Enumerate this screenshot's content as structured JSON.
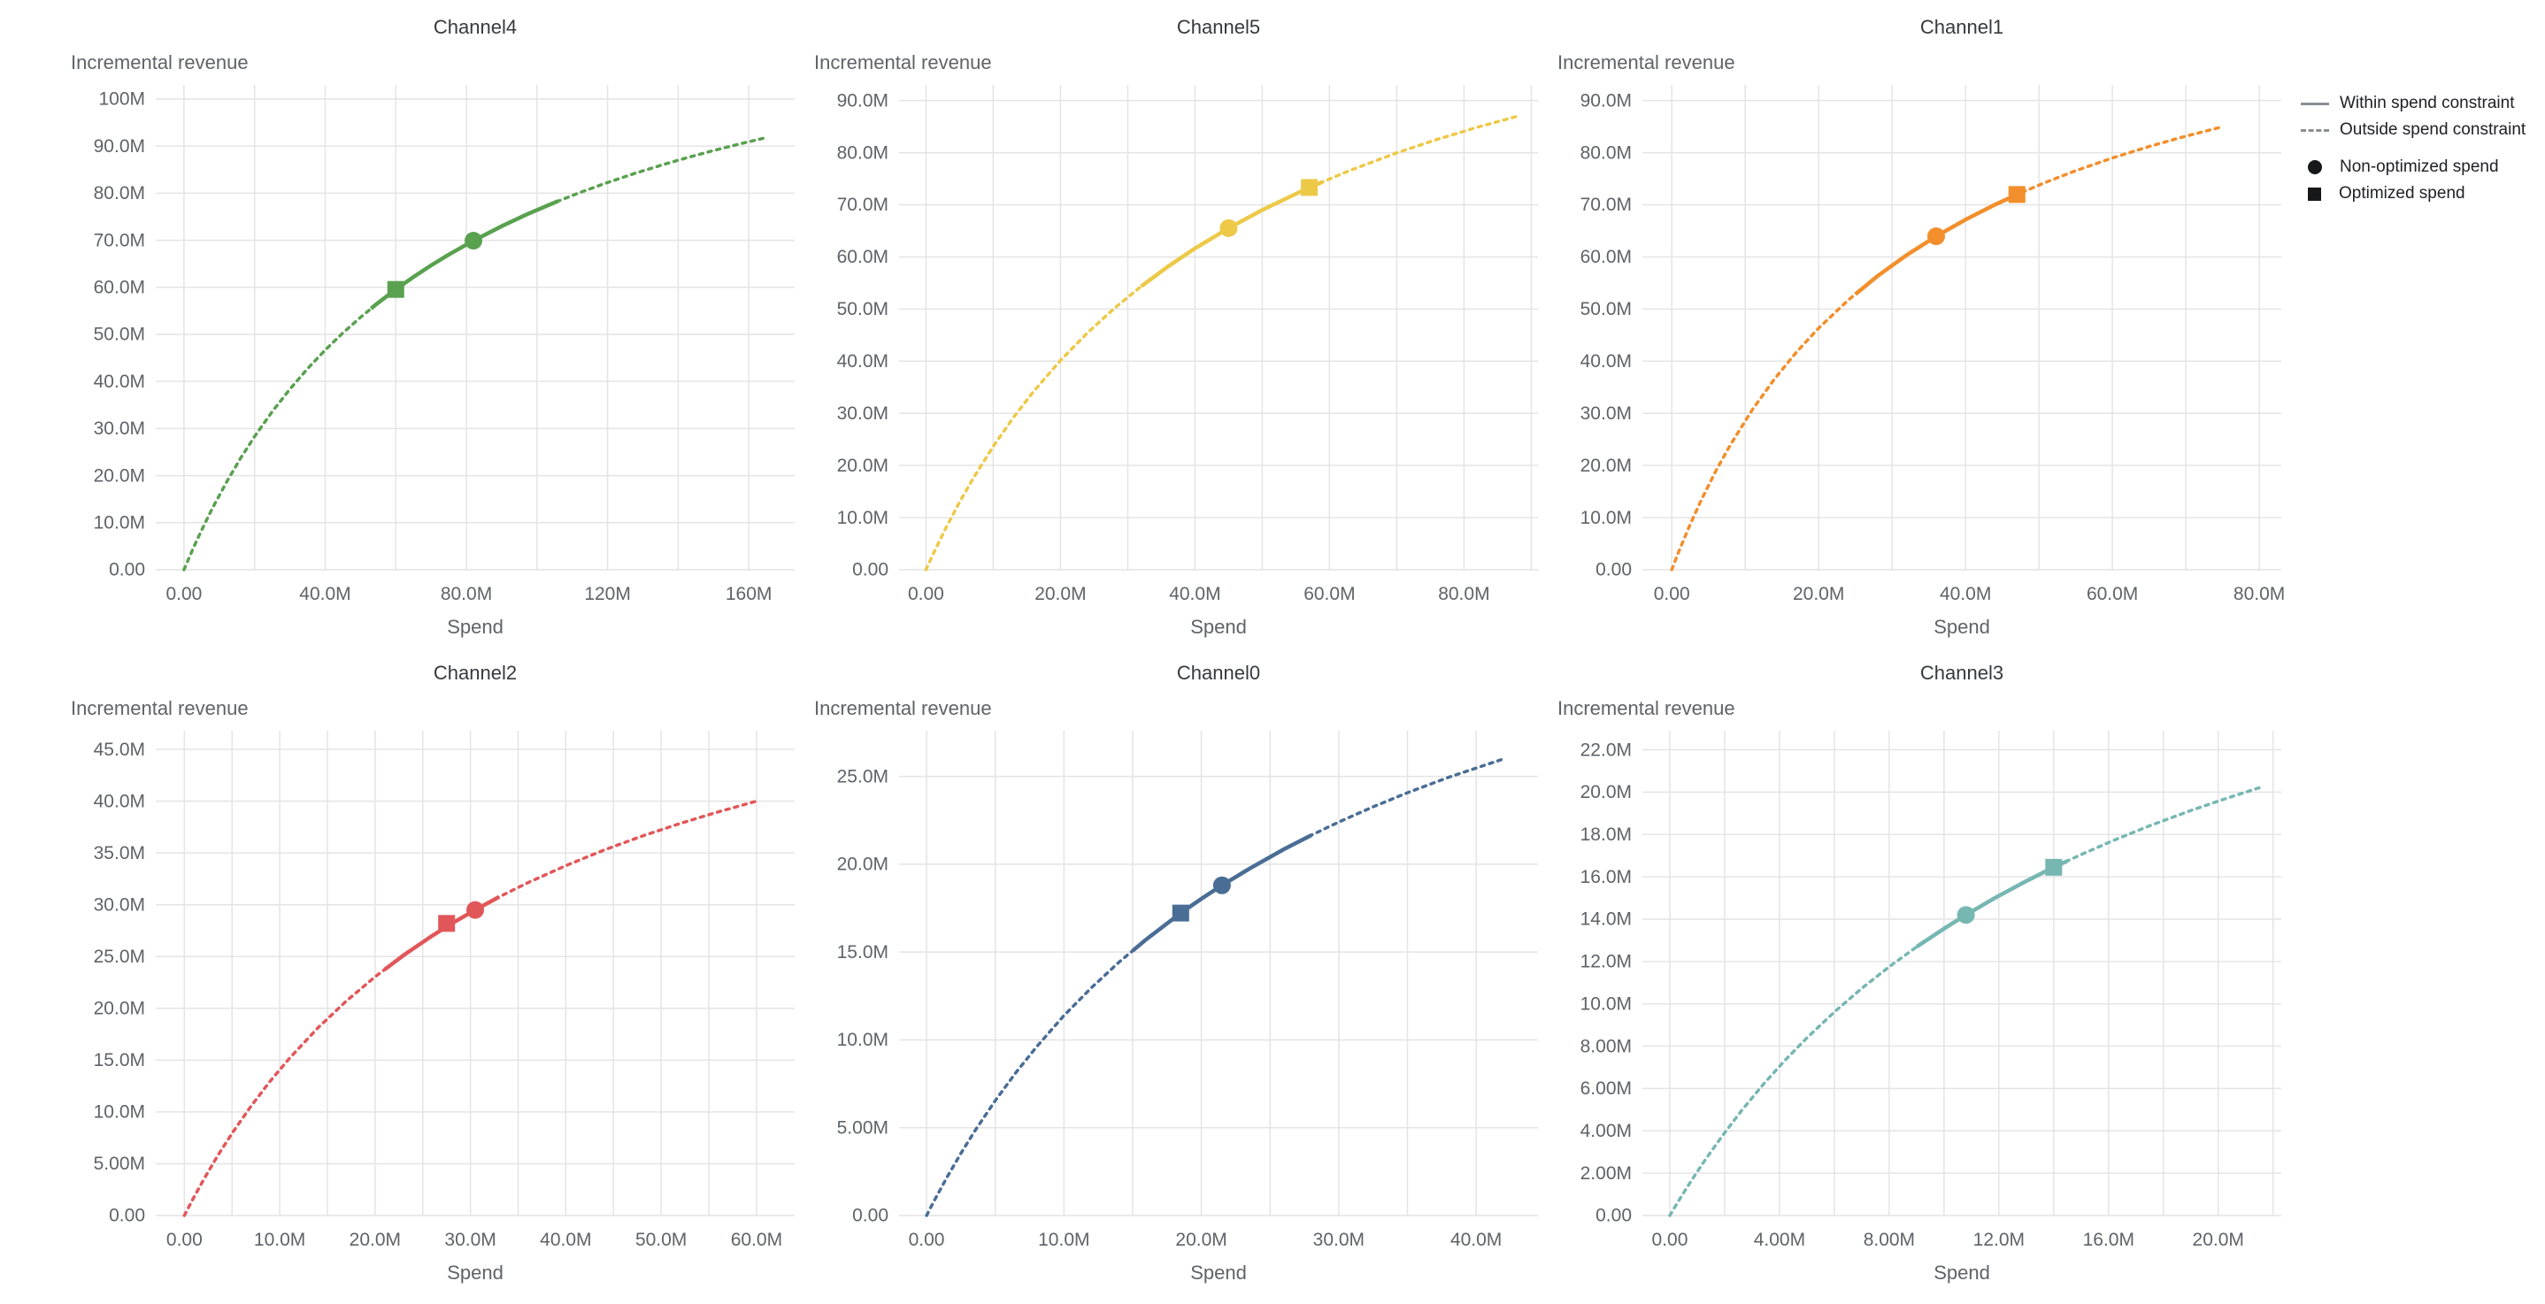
{
  "legend": {
    "within": "Within spend constraint",
    "outside": "Outside spend constraint",
    "non_optimized": "Non-optimized spend",
    "optimized": "Optimized spend"
  },
  "style": {
    "grid_color": "#e4e4e4",
    "tick_color": "#5f6368",
    "legend_marker_color": "#17181a"
  },
  "chart_data": [
    {
      "type": "line",
      "title": "Channel4",
      "ylabel": "Incremental revenue",
      "xlabel": "Spend",
      "color": "#59a14f",
      "units": "millions",
      "xlim": [
        -8,
        173
      ],
      "ylim": [
        0,
        103
      ],
      "x_ticks": {
        "values": [
          0,
          40,
          80,
          120,
          160
        ],
        "labels": [
          "0.00",
          "40.0M",
          "80.0M",
          "120M",
          "160M"
        ]
      },
      "y_ticks": {
        "values": [
          0,
          10,
          20,
          30,
          40,
          50,
          60,
          70,
          80,
          90,
          100
        ],
        "labels": [
          "0.00",
          "10.0M",
          "20.0M",
          "30.0M",
          "40.0M",
          "50.0M",
          "60.0M",
          "70.0M",
          "80.0M",
          "90.0M",
          "100M"
        ]
      },
      "curve": [
        [
          0,
          0
        ],
        [
          1,
          1.77
        ],
        [
          2,
          3.5
        ],
        [
          3.5,
          6.01
        ],
        [
          5,
          8.42
        ],
        [
          8,
          12.98
        ],
        [
          12,
          18.56
        ],
        [
          16,
          23.64
        ],
        [
          20,
          28.3
        ],
        [
          25,
          33.59
        ],
        [
          30,
          38.37
        ],
        [
          35,
          42.71
        ],
        [
          40,
          46.67
        ],
        [
          45,
          50.29
        ],
        [
          50,
          53.63
        ],
        [
          55,
          56.71
        ],
        [
          60,
          59.55
        ],
        [
          65,
          62.19
        ],
        [
          70,
          64.65
        ],
        [
          75,
          66.95
        ],
        [
          82,
          69.91
        ],
        [
          90,
          72.99
        ],
        [
          97,
          75.44
        ],
        [
          105,
          78.02
        ],
        [
          112,
          80.09
        ],
        [
          120,
          82.27
        ],
        [
          128,
          84.28
        ],
        [
          136,
          86.13
        ],
        [
          143,
          87.65
        ],
        [
          150,
          89.06
        ],
        [
          157,
          90.39
        ],
        [
          165,
          91.82
        ]
      ],
      "solid_range": [
        53,
        106
      ],
      "markers": {
        "non_optimized": [
          82,
          69.91
        ],
        "optimized": [
          60,
          59.55
        ]
      }
    },
    {
      "type": "line",
      "title": "Channel5",
      "ylabel": "Incremental revenue",
      "xlabel": "Spend",
      "color": "#edc948",
      "units": "millions",
      "xlim": [
        -4,
        91
      ],
      "ylim": [
        0,
        93
      ],
      "x_ticks": {
        "values": [
          0,
          20,
          40,
          60,
          80
        ],
        "labels": [
          "0.00",
          "20.0M",
          "40.0M",
          "60.0M",
          "80.0M"
        ]
      },
      "y_ticks": {
        "values": [
          0,
          10,
          20,
          30,
          40,
          50,
          60,
          70,
          80,
          90
        ],
        "labels": [
          "0.00",
          "10.0M",
          "20.0M",
          "30.0M",
          "40.0M",
          "50.0M",
          "60.0M",
          "70.0M",
          "80.0M",
          "90.0M"
        ]
      },
      "curve": [
        [
          0,
          0
        ],
        [
          0.7,
          1.99
        ],
        [
          1.5,
          4.18
        ],
        [
          3,
          8.11
        ],
        [
          5,
          12.99
        ],
        [
          7,
          17.5
        ],
        [
          10,
          23.66
        ],
        [
          13,
          29.19
        ],
        [
          16,
          34.19
        ],
        [
          20,
          40.15
        ],
        [
          24,
          45.43
        ],
        [
          28,
          50.14
        ],
        [
          32,
          54.36
        ],
        [
          36,
          58.17
        ],
        [
          40,
          61.63
        ],
        [
          45,
          65.52
        ],
        [
          50,
          69.01
        ],
        [
          57,
          73.33
        ],
        [
          63,
          76.58
        ],
        [
          70,
          79.96
        ],
        [
          76,
          82.54
        ],
        [
          82,
          84.88
        ],
        [
          88,
          87.01
        ]
      ],
      "solid_range": [
        32,
        59
      ],
      "markers": {
        "non_optimized": [
          45,
          65.52
        ],
        "optimized": [
          57,
          73.33
        ]
      }
    },
    {
      "type": "line",
      "title": "Channel1",
      "ylabel": "Incremental revenue",
      "xlabel": "Spend",
      "color": "#f28e2b",
      "units": "millions",
      "xlim": [
        -4,
        83
      ],
      "ylim": [
        0,
        93
      ],
      "x_ticks": {
        "values": [
          0,
          20,
          40,
          60,
          80
        ],
        "labels": [
          "0.00",
          "20.0M",
          "40.0M",
          "60.0M",
          "80.0M"
        ]
      },
      "y_ticks": {
        "values": [
          0,
          10,
          20,
          30,
          40,
          50,
          60,
          70,
          80,
          90
        ],
        "labels": [
          "0.00",
          "10.0M",
          "20.0M",
          "30.0M",
          "40.0M",
          "50.0M",
          "60.0M",
          "70.0M",
          "80.0M",
          "90.0M"
        ]
      },
      "curve": [
        [
          0,
          0
        ],
        [
          0.5,
          1.84
        ],
        [
          1,
          3.63
        ],
        [
          2.5,
          8.68
        ],
        [
          4,
          13.32
        ],
        [
          6,
          18.95
        ],
        [
          8,
          24.02
        ],
        [
          11,
          30.75
        ],
        [
          14,
          36.62
        ],
        [
          17,
          41.78
        ],
        [
          20,
          46.35
        ],
        [
          24,
          51.69
        ],
        [
          28,
          56.32
        ],
        [
          32,
          60.38
        ],
        [
          36,
          63.97
        ],
        [
          40,
          67.16
        ],
        [
          44,
          70.02
        ],
        [
          47,
          71.98
        ],
        [
          51,
          74.36
        ],
        [
          55,
          76.53
        ],
        [
          60,
          78.98
        ],
        [
          65,
          81.18
        ],
        [
          70,
          83.17
        ],
        [
          75,
          84.97
        ]
      ],
      "solid_range": [
        25,
        48
      ],
      "markers": {
        "non_optimized": [
          36,
          63.97
        ],
        "optimized": [
          47,
          71.98
        ]
      }
    },
    {
      "type": "line",
      "title": "Channel2",
      "ylabel": "Incremental revenue",
      "xlabel": "Spend",
      "color": "#e15759",
      "units": "millions",
      "xlim": [
        -3,
        64
      ],
      "ylim": [
        0,
        46.8
      ],
      "x_ticks": {
        "values": [
          0,
          10,
          20,
          30,
          40,
          50,
          60
        ],
        "labels": [
          "0.00",
          "10.0M",
          "20.0M",
          "30.0M",
          "40.0M",
          "50.0M",
          "60.0M"
        ]
      },
      "y_ticks": {
        "values": [
          0,
          5,
          10,
          15,
          20,
          25,
          30,
          35,
          40,
          45
        ],
        "labels": [
          "0.00",
          "5.00M",
          "10.0M",
          "15.0M",
          "20.0M",
          "25.0M",
          "30.0M",
          "35.0M",
          "40.0M",
          "45.0M"
        ]
      },
      "curve": [
        [
          0,
          0
        ],
        [
          0.5,
          0.89
        ],
        [
          1,
          1.76
        ],
        [
          2,
          3.43
        ],
        [
          3.5,
          5.77
        ],
        [
          5,
          7.93
        ],
        [
          7,
          10.57
        ],
        [
          9,
          12.97
        ],
        [
          11,
          15.16
        ],
        [
          14,
          18.11
        ],
        [
          17,
          20.72
        ],
        [
          20,
          23.05
        ],
        [
          23,
          25.13
        ],
        [
          26,
          27.01
        ],
        [
          28.5,
          28.44
        ],
        [
          30.5,
          29.5
        ],
        [
          33,
          30.75
        ],
        [
          36,
          32.12
        ],
        [
          40,
          33.78
        ],
        [
          44,
          35.28
        ],
        [
          48,
          36.63
        ],
        [
          52,
          37.85
        ],
        [
          56,
          38.97
        ],
        [
          60,
          40
        ]
      ],
      "solid_range": [
        21,
        33
      ],
      "markers": {
        "non_optimized": [
          30.5,
          29.5
        ],
        "optimized": [
          27.5,
          28.2
        ]
      }
    },
    {
      "type": "line",
      "title": "Channel0",
      "ylabel": "Incremental revenue",
      "xlabel": "Spend",
      "color": "#4a6d96",
      "units": "millions",
      "xlim": [
        -2,
        44.5
      ],
      "ylim": [
        0,
        27.6
      ],
      "x_ticks": {
        "values": [
          0,
          10,
          20,
          30,
          40
        ],
        "labels": [
          "0.00",
          "10.0M",
          "20.0M",
          "30.0M",
          "40.0M"
        ]
      },
      "y_ticks": {
        "values": [
          0,
          5,
          10,
          15,
          20,
          25
        ],
        "labels": [
          "0.00",
          "5.00M",
          "10.0M",
          "15.0M",
          "20.0M",
          "25.0M"
        ]
      },
      "curve": [
        [
          0,
          0
        ],
        [
          0.3,
          0.46
        ],
        [
          0.7,
          1.05
        ],
        [
          1.5,
          2.19
        ],
        [
          2.5,
          3.54
        ],
        [
          3.5,
          4.8
        ],
        [
          5,
          6.54
        ],
        [
          6.5,
          8.14
        ],
        [
          8,
          9.6
        ],
        [
          10,
          11.38
        ],
        [
          12,
          12.97
        ],
        [
          14,
          14.42
        ],
        [
          16,
          15.73
        ],
        [
          18.5,
          17.22
        ],
        [
          20,
          18.03
        ],
        [
          21.5,
          18.8
        ],
        [
          23.5,
          19.75
        ],
        [
          26,
          20.85
        ],
        [
          28,
          21.65
        ],
        [
          30,
          22.4
        ],
        [
          32.5,
          23.27
        ],
        [
          35,
          24.07
        ],
        [
          38,
          24.95
        ],
        [
          42,
          26
        ]
      ],
      "solid_range": [
        15,
        28
      ],
      "markers": {
        "non_optimized": [
          21.5,
          18.8
        ],
        "optimized": [
          18.5,
          17.22
        ]
      }
    },
    {
      "type": "line",
      "title": "Channel3",
      "ylabel": "Incremental revenue",
      "xlabel": "Spend",
      "color": "#76b7b2",
      "units": "millions",
      "xlim": [
        -1,
        22.3
      ],
      "ylim": [
        0,
        22.9
      ],
      "x_ticks": {
        "values": [
          0,
          4,
          8,
          12,
          16,
          20
        ],
        "labels": [
          "0.00",
          "4.00M",
          "8.00M",
          "12.0M",
          "16.0M",
          "20.0M"
        ]
      },
      "y_ticks": {
        "values": [
          0,
          2,
          4,
          6,
          8,
          10,
          12,
          14,
          16,
          18,
          20,
          22
        ],
        "labels": [
          "0.00",
          "2.00M",
          "4.00M",
          "6.00M",
          "8.00M",
          "10.0M",
          "12.0M",
          "14.0M",
          "16.0M",
          "18.0M",
          "20.0M",
          "22.0M"
        ]
      },
      "curve": [
        [
          0,
          0
        ],
        [
          0.2,
          0.44
        ],
        [
          0.4,
          0.86
        ],
        [
          0.8,
          1.68
        ],
        [
          1.3,
          2.65
        ],
        [
          1.9,
          3.74
        ],
        [
          2.6,
          4.93
        ],
        [
          3.4,
          6.18
        ],
        [
          4.2,
          7.33
        ],
        [
          5,
          8.39
        ],
        [
          6,
          9.61
        ],
        [
          7,
          10.73
        ],
        [
          8,
          11.75
        ],
        [
          9,
          12.69
        ],
        [
          10,
          13.55
        ],
        [
          10.8,
          14.2
        ],
        [
          11.8,
          14.96
        ],
        [
          12.9,
          15.73
        ],
        [
          14,
          16.45
        ],
        [
          15,
          17.05
        ],
        [
          16.2,
          17.73
        ],
        [
          17.5,
          18.41
        ],
        [
          19,
          19.13
        ],
        [
          20.2,
          19.66
        ],
        [
          21.5,
          20.21
        ]
      ],
      "solid_range": [
        9,
        14.5
      ],
      "markers": {
        "non_optimized": [
          10.8,
          14.2
        ],
        "optimized": [
          14,
          16.45
        ]
      }
    }
  ]
}
